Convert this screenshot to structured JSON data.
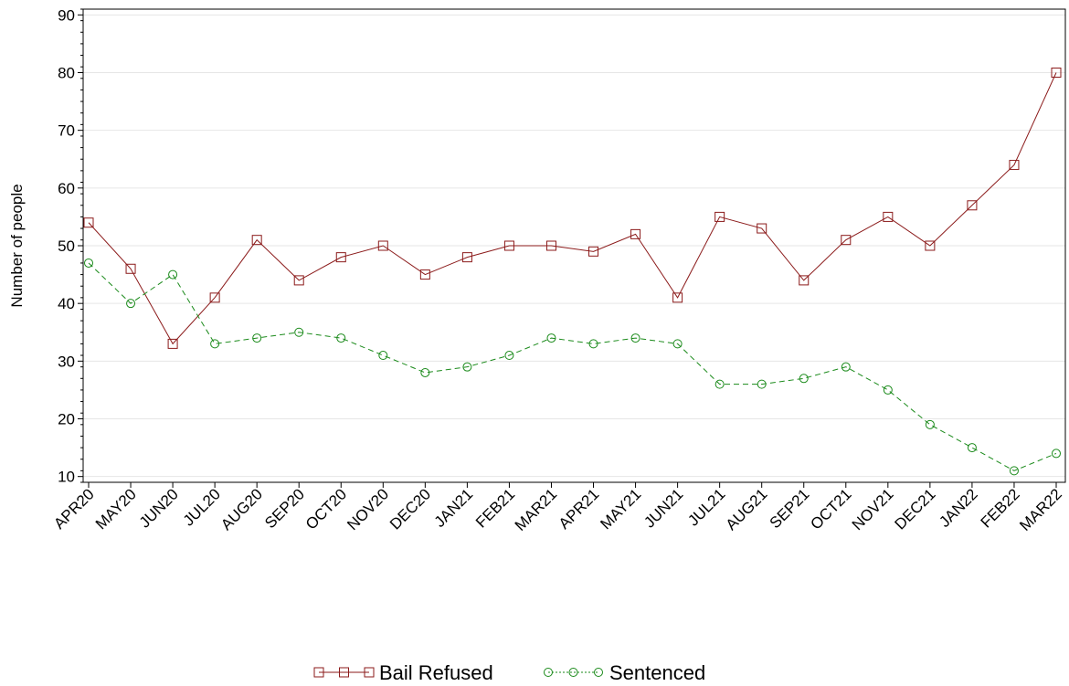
{
  "chart_data": {
    "type": "line",
    "categories": [
      "APR20",
      "MAY20",
      "JUN20",
      "JUL20",
      "AUG20",
      "SEP20",
      "OCT20",
      "NOV20",
      "DEC20",
      "JAN21",
      "FEB21",
      "MAR21",
      "APR21",
      "MAY21",
      "JUN21",
      "JUL21",
      "AUG21",
      "SEP21",
      "OCT21",
      "NOV21",
      "DEC21",
      "JAN22",
      "FEB22",
      "MAR22"
    ],
    "series": [
      {
        "name": "Bail Refused",
        "values": [
          54,
          46,
          33,
          41,
          51,
          44,
          48,
          50,
          45,
          48,
          50,
          50,
          49,
          52,
          41,
          55,
          53,
          44,
          51,
          55,
          50,
          57,
          64,
          80
        ],
        "color": "#8b1a1a",
        "marker": "square",
        "line_style": "solid"
      },
      {
        "name": "Sentenced",
        "values": [
          47,
          40,
          45,
          33,
          34,
          35,
          34,
          31,
          28,
          29,
          31,
          34,
          33,
          34,
          33,
          26,
          26,
          27,
          29,
          25,
          19,
          15,
          11,
          14
        ],
        "color": "#1a8a1a",
        "marker": "circle",
        "line_style": "dashed"
      }
    ],
    "ylabel": "Number of people",
    "xlabel": "",
    "ylim": [
      9,
      91
    ],
    "yticks": [
      10,
      20,
      30,
      40,
      50,
      60,
      70,
      80,
      90
    ],
    "grid": true,
    "legend_position": "bottom-center"
  }
}
